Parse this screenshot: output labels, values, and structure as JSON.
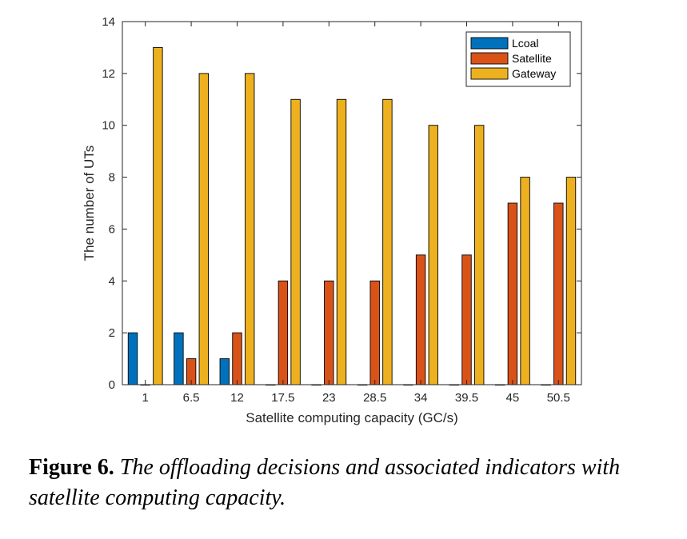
{
  "chart_data": {
    "type": "bar",
    "categories": [
      "1",
      "6.5",
      "12",
      "17.5",
      "23",
      "28.5",
      "34",
      "39.5",
      "45",
      "50.5"
    ],
    "series": [
      {
        "name": "Lcoal",
        "color": "#0072BD",
        "values": [
          2,
          2,
          1,
          0,
          0,
          0,
          0,
          0,
          0,
          0
        ]
      },
      {
        "name": "Satellite",
        "color": "#D95319",
        "values": [
          0,
          1,
          2,
          4,
          4,
          4,
          5,
          5,
          7,
          7
        ]
      },
      {
        "name": "Gateway",
        "color": "#EDB120",
        "values": [
          13,
          12,
          12,
          11,
          11,
          11,
          10,
          10,
          8,
          8
        ]
      }
    ],
    "xlabel": "Satellite computing capacity (GC/s)",
    "ylabel": "The number of UTs",
    "ylim": [
      0,
      14
    ],
    "yticks": [
      0,
      2,
      4,
      6,
      8,
      10,
      12,
      14
    ],
    "legend_position": "top-right",
    "grid": false
  },
  "caption": {
    "label": "Figure 6.",
    "text": "The offloading decisions and associated indicators with satellite computing capacity."
  }
}
